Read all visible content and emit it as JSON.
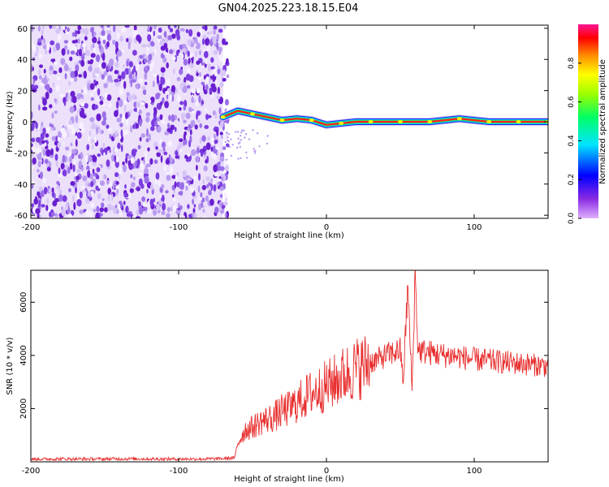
{
  "title": "GN04.2025.223.18.15.E04",
  "chart_data": [
    {
      "type": "heatmap",
      "title": "GN04.2025.223.18.15.E04",
      "xlabel": "Height of straight line (km)",
      "ylabel": "Frequency (Hz)",
      "xlim": [
        -200,
        150
      ],
      "ylim": [
        -62,
        62
      ],
      "x_ticks": [
        -200,
        -100,
        0,
        100
      ],
      "y_ticks": [
        -60,
        -40,
        -20,
        0,
        20,
        40,
        60
      ],
      "noise_region_x": [
        -200,
        -70
      ],
      "signal_track": {
        "x": [
          -70,
          -60,
          -50,
          -40,
          -30,
          -20,
          -10,
          0,
          10,
          20,
          30,
          40,
          50,
          60,
          70,
          80,
          90,
          100,
          110,
          120,
          130,
          140,
          150
        ],
        "freq_hz": [
          3,
          7,
          5,
          3,
          1,
          2,
          1,
          -2,
          -1,
          0,
          0,
          0,
          0,
          0,
          0,
          1,
          2,
          1,
          0,
          0,
          0,
          0,
          0
        ]
      },
      "colorbar": {
        "label": "Normalized spectral amplitude",
        "range": [
          0,
          1
        ],
        "ticks": [
          "0.0",
          "0.2",
          "0.4",
          "0.6",
          "0.8"
        ],
        "colormap": "rainbow"
      }
    },
    {
      "type": "line",
      "xlabel": "Height of straight line (km)",
      "ylabel": "SNR (10 * v/v)",
      "xlim": [
        -200,
        150
      ],
      "ylim": [
        0,
        7200
      ],
      "x_ticks": [
        -200,
        -100,
        0,
        100
      ],
      "y_ticks": [
        2000,
        4000,
        6000
      ],
      "color": "#e83030",
      "series": [
        {
          "x": [
            -200,
            -180,
            -160,
            -140,
            -120,
            -100,
            -80,
            -70,
            -62,
            -60,
            -55,
            -50,
            -45,
            -40,
            -35,
            -30,
            -25,
            -20,
            -15,
            -10,
            -5,
            0,
            5,
            10,
            15,
            20,
            25,
            30,
            35,
            40,
            45,
            50,
            52,
            55,
            58,
            60,
            62,
            65,
            70,
            75,
            80,
            85,
            90,
            95,
            100,
            110,
            120,
            130,
            140,
            150
          ],
          "values": [
            100,
            110,
            105,
            115,
            110,
            105,
            110,
            120,
            150,
            700,
            1200,
            1300,
            1500,
            1600,
            1700,
            1900,
            2000,
            2200,
            2400,
            2600,
            2700,
            2850,
            3000,
            3200,
            3350,
            3500,
            3600,
            3750,
            3850,
            4000,
            4100,
            4200,
            3000,
            6600,
            2700,
            7100,
            4200,
            4150,
            4100,
            4050,
            4000,
            4000,
            3950,
            3900,
            3850,
            3800,
            3750,
            3700,
            3650,
            3600
          ]
        }
      ]
    }
  ]
}
